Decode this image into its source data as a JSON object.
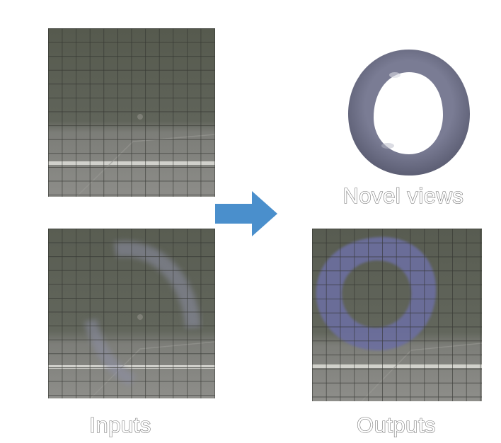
{
  "figure": {
    "captions": {
      "novel_views": "Novel views",
      "inputs": "Inputs",
      "outputs": "Outputs"
    },
    "colors": {
      "arrow": "#4a8fcc",
      "grass": "#5b5f52",
      "road": "#8e8e8a",
      "grid": "#2e302c",
      "ring": "#6a6c86",
      "ring_output": "#6b6ea0"
    },
    "icons": {
      "arrow": "right-arrow-icon"
    }
  }
}
